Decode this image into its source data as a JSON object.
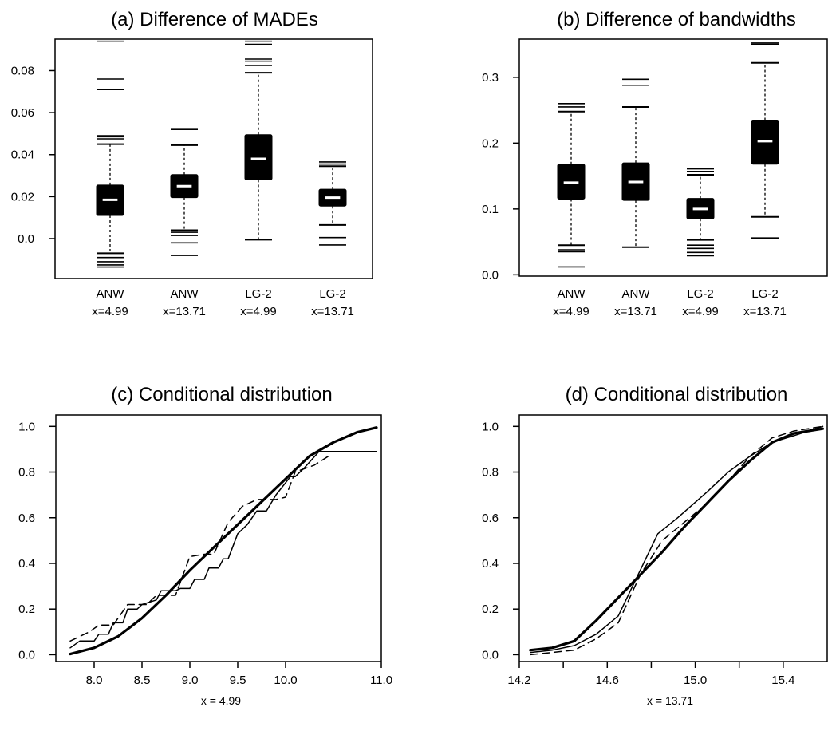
{
  "chart_data": [
    {
      "type": "boxplot",
      "title": "(a) Difference of MADEs",
      "ylim": [
        -0.019,
        0.095
      ],
      "y_ticks": [
        "0.0",
        "0.02",
        "0.04",
        "0.06",
        "0.08"
      ],
      "categories": [
        {
          "line1": "ANW",
          "line2": "x=4.99"
        },
        {
          "line1": "ANW",
          "line2": "x=13.71"
        },
        {
          "line1": "LG-2",
          "line2": "x=4.99"
        },
        {
          "line1": "LG-2",
          "line2": "x=13.71"
        }
      ],
      "boxes": [
        {
          "q1": 0.011,
          "median": 0.0185,
          "q3": 0.0255,
          "whisker_low": -0.007,
          "whisker_high": 0.045,
          "outliers": [
            0.0475,
            0.0485,
            0.049,
            0.071,
            0.076,
            0.094,
            -0.009,
            -0.011,
            -0.0125,
            -0.0135
          ]
        },
        {
          "q1": 0.0195,
          "median": 0.025,
          "q3": 0.0305,
          "whisker_low": 0.004,
          "whisker_high": 0.0445,
          "outliers": [
            0.052,
            0.003,
            0.0015,
            -0.002,
            -0.008
          ]
        },
        {
          "q1": 0.028,
          "median": 0.038,
          "q3": 0.0495,
          "whisker_low": -0.0005,
          "whisker_high": 0.079,
          "outliers": [
            0.0825,
            0.0845,
            0.0855,
            0.0925,
            0.094
          ]
        },
        {
          "q1": 0.0155,
          "median": 0.0195,
          "q3": 0.0235,
          "whisker_low": 0.0065,
          "whisker_high": 0.0345,
          "outliers": [
            0.0365,
            0.0355,
            0.0005,
            -0.003
          ]
        }
      ]
    },
    {
      "type": "boxplot",
      "title": "(b) Difference of bandwidths",
      "ylim": [
        -0.002,
        0.358
      ],
      "y_ticks": [
        "0.0",
        "0.1",
        "0.2",
        "0.3"
      ],
      "categories": [
        {
          "line1": "ANW",
          "line2": "x=4.99"
        },
        {
          "line1": "ANW",
          "line2": "x=13.71"
        },
        {
          "line1": "LG-2",
          "line2": "x=4.99"
        },
        {
          "line1": "LG-2",
          "line2": "x=13.71"
        }
      ],
      "boxes": [
        {
          "q1": 0.115,
          "median": 0.14,
          "q3": 0.168,
          "whisker_low": 0.045,
          "whisker_high": 0.248,
          "outliers": [
            0.255,
            0.26,
            0.038,
            0.035,
            0.012
          ]
        },
        {
          "q1": 0.113,
          "median": 0.141,
          "q3": 0.17,
          "whisker_low": 0.042,
          "whisker_high": 0.255,
          "outliers": [
            0.288,
            0.297
          ]
        },
        {
          "q1": 0.085,
          "median": 0.1,
          "q3": 0.116,
          "whisker_low": 0.053,
          "whisker_high": 0.152,
          "outliers": [
            0.157,
            0.161,
            0.045,
            0.04,
            0.034,
            0.029
          ]
        },
        {
          "q1": 0.168,
          "median": 0.203,
          "q3": 0.235,
          "whisker_low": 0.088,
          "whisker_high": 0.322,
          "outliers": [
            0.35,
            0.352,
            0.056
          ]
        }
      ]
    },
    {
      "type": "line",
      "title": "(c) Conditional distribution",
      "xlabel": "x = 4.99",
      "xlim": [
        7.6,
        11.0
      ],
      "ylim": [
        -0.03,
        1.05
      ],
      "x_ticks": [
        8.0,
        8.5,
        9.0,
        9.5,
        10.0,
        11.0
      ],
      "x_tick_labels": [
        "8.0",
        "8.5",
        "9.0",
        "9.5",
        "10.0",
        "11.0"
      ],
      "y_ticks": [
        0.0,
        0.2,
        0.4,
        0.6,
        0.8,
        1.0
      ],
      "y_tick_labels": [
        "0.0",
        "0.2",
        "0.4",
        "0.6",
        "0.8",
        "1.0"
      ],
      "series": [
        {
          "style": "thick",
          "points": [
            [
              7.75,
              0.003
            ],
            [
              8.0,
              0.03
            ],
            [
              8.25,
              0.08
            ],
            [
              8.5,
              0.16
            ],
            [
              8.75,
              0.26
            ],
            [
              9.0,
              0.37
            ],
            [
              9.25,
              0.47
            ],
            [
              9.5,
              0.57
            ],
            [
              9.75,
              0.67
            ],
            [
              10.0,
              0.77
            ],
            [
              10.25,
              0.87
            ],
            [
              10.5,
              0.93
            ],
            [
              10.75,
              0.975
            ],
            [
              10.95,
              0.995
            ]
          ]
        },
        {
          "style": "thin",
          "points": [
            [
              7.75,
              0.03
            ],
            [
              7.85,
              0.06
            ],
            [
              8.0,
              0.06
            ],
            [
              8.05,
              0.09
            ],
            [
              8.15,
              0.09
            ],
            [
              8.2,
              0.14
            ],
            [
              8.3,
              0.14
            ],
            [
              8.35,
              0.2
            ],
            [
              8.45,
              0.2
            ],
            [
              8.5,
              0.22
            ],
            [
              8.65,
              0.24
            ],
            [
              8.7,
              0.28
            ],
            [
              8.85,
              0.28
            ],
            [
              8.9,
              0.29
            ],
            [
              9.0,
              0.29
            ],
            [
              9.05,
              0.33
            ],
            [
              9.15,
              0.33
            ],
            [
              9.2,
              0.38
            ],
            [
              9.3,
              0.38
            ],
            [
              9.35,
              0.42
            ],
            [
              9.4,
              0.42
            ],
            [
              9.5,
              0.53
            ],
            [
              9.6,
              0.57
            ],
            [
              9.7,
              0.63
            ],
            [
              9.8,
              0.63
            ],
            [
              9.9,
              0.7
            ],
            [
              10.05,
              0.78
            ],
            [
              10.1,
              0.78
            ],
            [
              10.2,
              0.82
            ],
            [
              10.35,
              0.89
            ],
            [
              10.4,
              0.89
            ],
            [
              10.95,
              0.89
            ]
          ]
        },
        {
          "style": "dashed",
          "points": [
            [
              7.75,
              0.06
            ],
            [
              7.95,
              0.1
            ],
            [
              8.05,
              0.13
            ],
            [
              8.2,
              0.13
            ],
            [
              8.35,
              0.22
            ],
            [
              8.55,
              0.22
            ],
            [
              8.65,
              0.26
            ],
            [
              8.85,
              0.26
            ],
            [
              9.0,
              0.43
            ],
            [
              9.15,
              0.44
            ],
            [
              9.25,
              0.44
            ],
            [
              9.4,
              0.58
            ],
            [
              9.55,
              0.65
            ],
            [
              9.7,
              0.68
            ],
            [
              9.9,
              0.68
            ],
            [
              10.0,
              0.69
            ],
            [
              10.1,
              0.8
            ],
            [
              10.3,
              0.83
            ],
            [
              10.45,
              0.87
            ]
          ]
        }
      ]
    },
    {
      "type": "line",
      "title": "(d) Conditional distribution",
      "xlabel": "x = 13.71",
      "xlim": [
        14.2,
        15.6
      ],
      "ylim": [
        -0.03,
        1.05
      ],
      "x_ticks": [
        14.2,
        14.6,
        15.0,
        15.4
      ],
      "x_tick_labels": [
        "14.2",
        "14.6",
        "15.0",
        "15.4"
      ],
      "minor_x_ticks": [
        14.4,
        14.8,
        15.2
      ],
      "y_ticks": [
        0.0,
        0.2,
        0.4,
        0.6,
        0.8,
        1.0
      ],
      "y_tick_labels": [
        "0.0",
        "0.2",
        "0.4",
        "0.6",
        "0.8",
        "1.0"
      ],
      "series": [
        {
          "style": "thick",
          "points": [
            [
              14.25,
              0.02
            ],
            [
              14.35,
              0.03
            ],
            [
              14.45,
              0.06
            ],
            [
              14.55,
              0.15
            ],
            [
              14.65,
              0.25
            ],
            [
              14.75,
              0.35
            ],
            [
              14.85,
              0.45
            ],
            [
              14.95,
              0.56
            ],
            [
              15.05,
              0.66
            ],
            [
              15.15,
              0.76
            ],
            [
              15.25,
              0.85
            ],
            [
              15.35,
              0.93
            ],
            [
              15.45,
              0.97
            ],
            [
              15.58,
              0.99
            ]
          ]
        },
        {
          "style": "thin",
          "points": [
            [
              14.25,
              0.01
            ],
            [
              14.35,
              0.02
            ],
            [
              14.45,
              0.04
            ],
            [
              14.55,
              0.09
            ],
            [
              14.65,
              0.17
            ],
            [
              14.75,
              0.37
            ],
            [
              14.83,
              0.53
            ],
            [
              14.92,
              0.6
            ],
            [
              15.05,
              0.71
            ],
            [
              15.15,
              0.8
            ],
            [
              15.25,
              0.87
            ],
            [
              15.35,
              0.93
            ],
            [
              15.45,
              0.96
            ],
            [
              15.58,
              1.0
            ]
          ]
        },
        {
          "style": "dashed",
          "points": [
            [
              14.25,
              0.0
            ],
            [
              14.35,
              0.01
            ],
            [
              14.45,
              0.02
            ],
            [
              14.55,
              0.07
            ],
            [
              14.65,
              0.14
            ],
            [
              14.75,
              0.35
            ],
            [
              14.85,
              0.5
            ],
            [
              14.95,
              0.58
            ],
            [
              15.05,
              0.66
            ],
            [
              15.15,
              0.76
            ],
            [
              15.25,
              0.87
            ],
            [
              15.35,
              0.95
            ],
            [
              15.45,
              0.98
            ],
            [
              15.58,
              1.0
            ]
          ]
        }
      ]
    }
  ]
}
